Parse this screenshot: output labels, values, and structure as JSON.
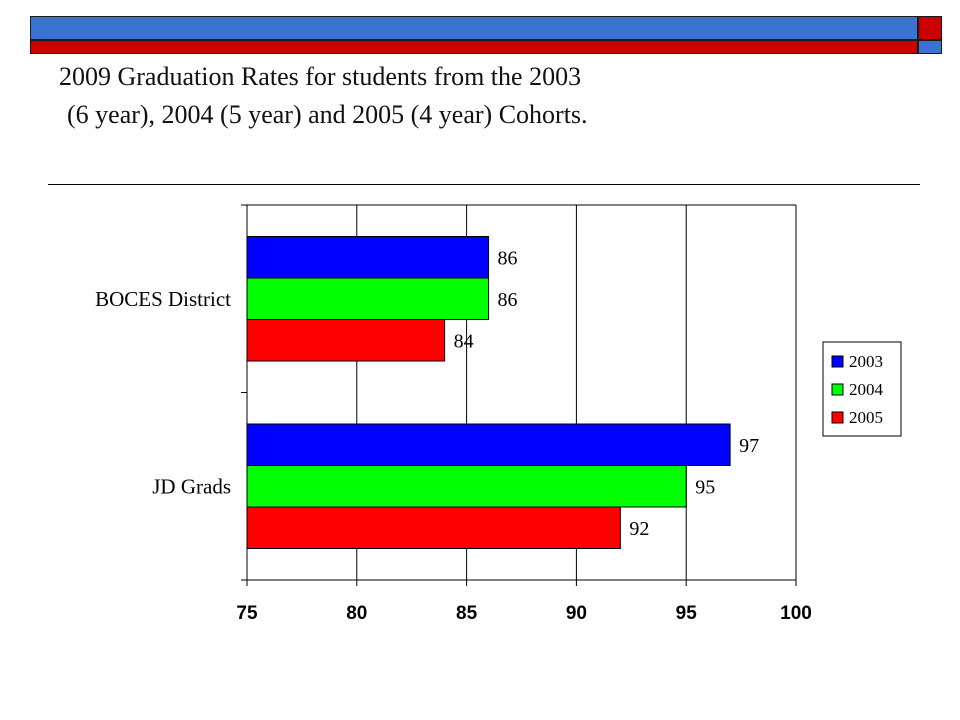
{
  "slide": {
    "title_line_1": "2009 Graduation Rates for students  from the 2003",
    "title_line_2": "(6 year), 2004 (5 year) and 2005 (4 year) Cohorts.",
    "band_blue": "#3a74d0",
    "band_red": "#cc0000"
  },
  "chart_data": {
    "type": "bar",
    "orientation": "horizontal",
    "categories": [
      "BOCES District",
      "JD Grads"
    ],
    "series": [
      {
        "name": "2003",
        "color": "#0000ff",
        "values": [
          86,
          97
        ]
      },
      {
        "name": "2004",
        "color": "#00ff00",
        "values": [
          86,
          95
        ]
      },
      {
        "name": "2005",
        "color": "#ff0000",
        "values": [
          84,
          92
        ]
      }
    ],
    "xlim": [
      75,
      100
    ],
    "xticks": [
      "75",
      "80",
      "85",
      "90",
      "95",
      "100"
    ],
    "value_labels": [
      [
        "86",
        "97"
      ],
      [
        "86",
        "95"
      ],
      [
        "84",
        "92"
      ]
    ],
    "grid": true,
    "legend_position": "right"
  }
}
